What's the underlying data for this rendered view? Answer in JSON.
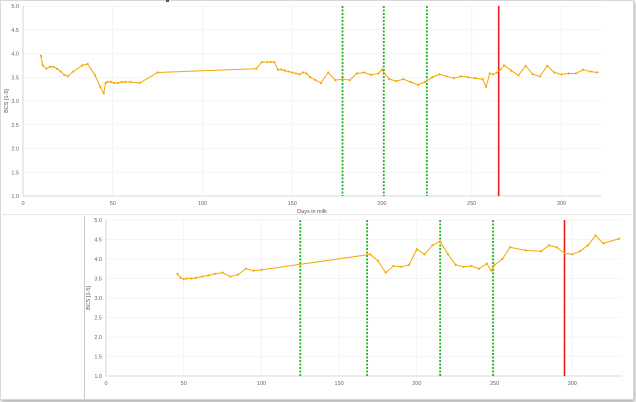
{
  "colors": {
    "series": "#f5a800",
    "dashed_marker": "#21b521",
    "solid_marker": "#ee1c1c",
    "grid": "#ececec",
    "axis": "#cfcfcf"
  },
  "chart_data": [
    {
      "type": "line",
      "xlabel": "Days in milk",
      "ylabel": "BCS [1-5]",
      "xlim": [
        0,
        322
      ],
      "ylim": [
        1.0,
        5.0
      ],
      "x_ticks": [
        "0",
        "50",
        "100",
        "150",
        "200",
        "250",
        "300"
      ],
      "y_ticks": [
        "1.0",
        "1.5",
        "2.0",
        "2.5",
        "3.0",
        "3.5",
        "4.0",
        "4.5",
        "5.0"
      ],
      "grid": true,
      "vertical_markers": [
        {
          "x": 178,
          "style": "dashed",
          "color": "green"
        },
        {
          "x": 201,
          "style": "dashed",
          "color": "green"
        },
        {
          "x": 225,
          "style": "dashed",
          "color": "green"
        },
        {
          "x": 265,
          "style": "solid",
          "color": "red"
        }
      ],
      "series": [
        {
          "x": [
            10,
            11,
            13,
            15,
            17,
            19,
            21,
            23,
            25,
            28,
            33,
            36,
            40,
            43,
            45,
            46,
            47,
            49,
            51,
            53,
            55,
            57,
            60,
            65,
            75,
            130,
            133,
            136,
            138,
            140,
            142,
            144,
            146,
            148,
            150,
            152,
            154,
            156,
            158,
            160,
            163,
            166,
            170,
            174,
            178,
            182,
            186,
            190,
            194,
            198,
            200,
            204,
            208,
            212,
            216,
            220,
            224,
            228,
            232,
            236,
            240,
            244,
            248,
            252,
            256,
            258,
            260,
            262,
            264,
            266,
            268,
            272,
            276,
            280,
            284,
            288,
            292,
            296,
            300,
            304,
            308,
            312,
            316,
            320
          ],
          "y": [
            3.95,
            3.75,
            3.68,
            3.72,
            3.72,
            3.68,
            3.62,
            3.55,
            3.52,
            3.62,
            3.75,
            3.78,
            3.55,
            3.3,
            3.16,
            3.38,
            3.4,
            3.4,
            3.38,
            3.38,
            3.4,
            3.4,
            3.4,
            3.38,
            3.6,
            3.68,
            3.82,
            3.82,
            3.82,
            3.82,
            3.66,
            3.66,
            3.64,
            3.62,
            3.6,
            3.58,
            3.56,
            3.6,
            3.58,
            3.5,
            3.44,
            3.38,
            3.6,
            3.44,
            3.46,
            3.44,
            3.58,
            3.6,
            3.55,
            3.58,
            3.66,
            3.46,
            3.42,
            3.46,
            3.4,
            3.34,
            3.4,
            3.5,
            3.56,
            3.52,
            3.48,
            3.52,
            3.5,
            3.48,
            3.46,
            3.3,
            3.58,
            3.56,
            3.6,
            3.66,
            3.75,
            3.64,
            3.54,
            3.74,
            3.56,
            3.52,
            3.74,
            3.6,
            3.56,
            3.58,
            3.58,
            3.66,
            3.62,
            3.6
          ]
        }
      ]
    },
    {
      "type": "line",
      "xlabel": "",
      "ylabel": "BCS [1-5]",
      "xlim": [
        0,
        332
      ],
      "ylim": [
        1.0,
        5.0
      ],
      "x_ticks": [
        "0",
        "50",
        "100",
        "150",
        "200",
        "250",
        "300"
      ],
      "y_ticks": [
        "1.0",
        "1.5",
        "2.0",
        "2.5",
        "3.0",
        "3.5",
        "4.0",
        "4.5",
        "5.0"
      ],
      "grid": true,
      "vertical_markers": [
        {
          "x": 125,
          "style": "dashed",
          "color": "green"
        },
        {
          "x": 168,
          "style": "dashed",
          "color": "green"
        },
        {
          "x": 215,
          "style": "dashed",
          "color": "green"
        },
        {
          "x": 249,
          "style": "dashed",
          "color": "green"
        },
        {
          "x": 295,
          "style": "solid",
          "color": "red"
        }
      ],
      "series": [
        {
          "x": [
            46,
            48,
            50,
            52,
            55,
            58,
            62,
            66,
            70,
            75,
            80,
            85,
            90,
            95,
            100,
            170,
            175,
            180,
            185,
            190,
            195,
            200,
            205,
            210,
            215,
            220,
            225,
            230,
            235,
            240,
            245,
            248,
            250,
            255,
            260,
            270,
            280,
            285,
            290,
            295,
            300,
            305,
            310,
            315,
            320,
            330
          ],
          "y": [
            3.62,
            3.52,
            3.48,
            3.5,
            3.5,
            3.52,
            3.55,
            3.58,
            3.62,
            3.65,
            3.55,
            3.6,
            3.75,
            3.7,
            3.72,
            4.12,
            3.95,
            3.65,
            3.82,
            3.8,
            3.85,
            4.25,
            4.12,
            4.35,
            4.45,
            4.12,
            3.85,
            3.8,
            3.82,
            3.75,
            3.88,
            3.7,
            3.85,
            4.0,
            4.3,
            4.22,
            4.2,
            4.35,
            4.3,
            4.15,
            4.12,
            4.2,
            4.35,
            4.6,
            4.4,
            4.52
          ]
        }
      ]
    }
  ]
}
